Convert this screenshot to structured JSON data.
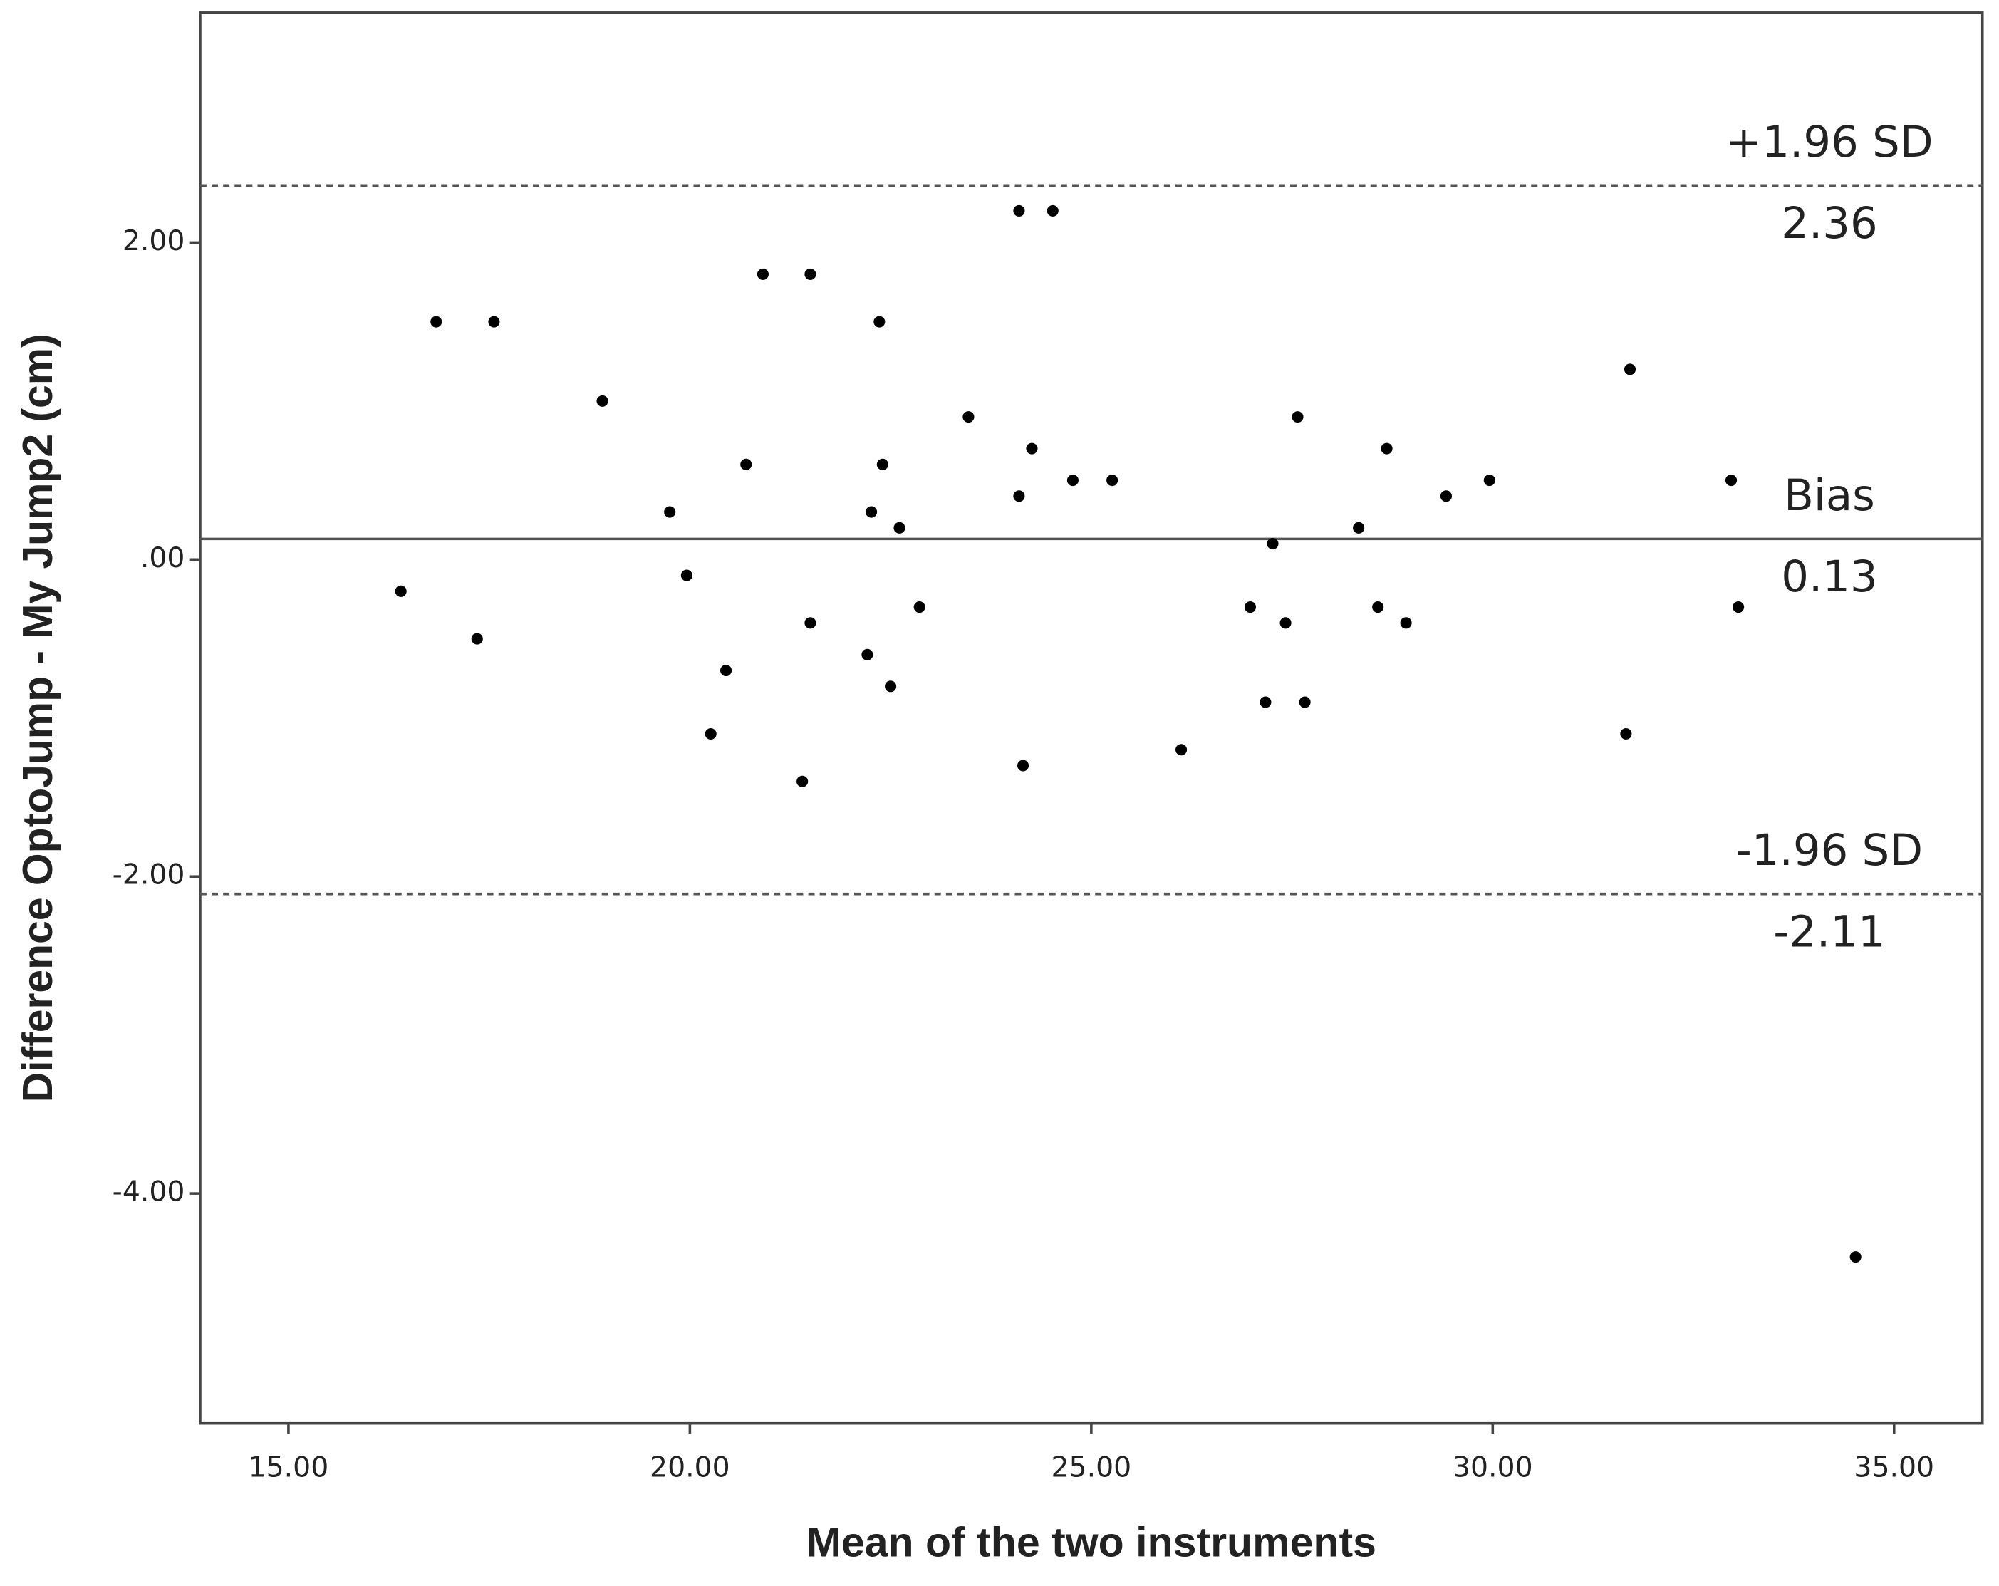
{
  "chart_data": {
    "type": "scatter",
    "xlabel": "Mean of the two instruments",
    "ylabel": "Difference OptoJump - My Jump2 (cm)",
    "x": [
      16.4,
      16.84,
      17.35,
      17.56,
      18.91,
      19.75,
      19.96,
      20.26,
      20.45,
      20.7,
      20.91,
      21.4,
      21.5,
      21.5,
      22.21,
      22.26,
      22.36,
      22.4,
      22.5,
      22.61,
      22.86,
      23.47,
      24.1,
      24.1,
      24.15,
      24.26,
      24.52,
      24.77,
      25.26,
      26.12,
      26.98,
      27.17,
      27.26,
      27.42,
      27.57,
      27.66,
      28.33,
      28.57,
      28.68,
      28.92,
      29.42,
      29.96,
      31.66,
      31.71,
      32.97,
      33.06,
      34.52
    ],
    "values": [
      -0.2,
      1.5,
      -0.5,
      1.5,
      1.0,
      0.3,
      -0.1,
      -1.1,
      -0.7,
      0.6,
      1.8,
      -1.4,
      1.8,
      -0.4,
      -0.6,
      0.3,
      1.5,
      0.6,
      -0.8,
      0.2,
      -0.3,
      0.9,
      2.2,
      0.4,
      -1.3,
      0.7,
      2.2,
      0.5,
      0.5,
      -1.2,
      -0.3,
      -0.9,
      0.1,
      -0.4,
      0.9,
      -0.9,
      0.2,
      -0.3,
      0.7,
      -0.4,
      0.4,
      0.5,
      -1.1,
      1.2,
      0.5,
      -0.3,
      -4.4
    ],
    "color": "#000000",
    "xlim": [
      13.9,
      36.1
    ],
    "ylim": [
      -5.45,
      3.45
    ],
    "xticks": [
      {
        "value": 15,
        "label": "15.00"
      },
      {
        "value": 20,
        "label": "20.00"
      },
      {
        "value": 25,
        "label": "25.00"
      },
      {
        "value": 30,
        "label": "30.00"
      },
      {
        "value": 35,
        "label": "35.00"
      }
    ],
    "yticks": [
      {
        "value": -4,
        "label": "-4.00"
      },
      {
        "value": -2,
        "label": "-2.00"
      },
      {
        "value": 0,
        "label": ".00"
      },
      {
        "value": 2,
        "label": "2.00"
      }
    ],
    "reference_lines": [
      {
        "label": "+1.96 SD",
        "value": 2.36,
        "style": "dashed"
      },
      {
        "label": "Bias",
        "value": 0.13,
        "style": "solid"
      },
      {
        "label": "-1.96 SD",
        "value": -2.11,
        "style": "dashed"
      }
    ],
    "grid": false
  }
}
